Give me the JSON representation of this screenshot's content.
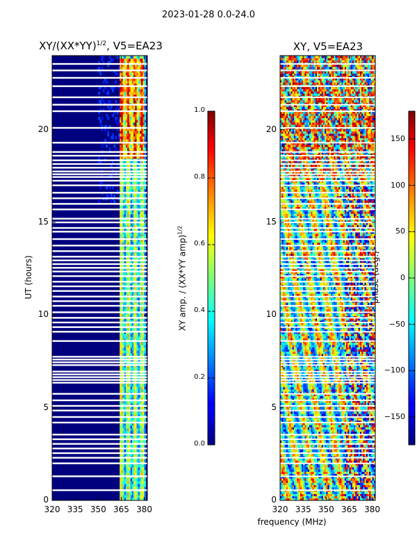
{
  "suptitle": "2023-01-28 0.0-24.0",
  "xlabel_shared": "frequency (MHz)",
  "chart_data": [
    {
      "type": "heatmap",
      "title_main": "XY/(XX*YY)",
      "title_sup": "1/2",
      "title_tail": ", V5=EA23",
      "xlabel": "frequency (MHz)",
      "ylabel": "UT (hours)",
      "xlim": [
        320,
        382
      ],
      "ylim": [
        0,
        24
      ],
      "xticks": [
        {
          "value": 320,
          "label": "320"
        },
        {
          "value": 335,
          "label": "335"
        },
        {
          "value": 350,
          "label": "350"
        },
        {
          "value": 365,
          "label": "365"
        },
        {
          "value": 380,
          "label": "380"
        }
      ],
      "yticks": [
        {
          "value": 0,
          "label": "0"
        },
        {
          "value": 5,
          "label": "5"
        },
        {
          "value": 10,
          "label": "10"
        },
        {
          "value": 15,
          "label": "15"
        },
        {
          "value": 20,
          "label": "20"
        }
      ],
      "colorbar": {
        "label_main": "XY amp. / (XX*YY amp)",
        "label_sup": "1/2",
        "range": [
          0.0,
          1.0
        ],
        "colormap": "jet",
        "ticks": [
          "0.0",
          "0.2",
          "0.4",
          "0.6",
          "0.8",
          "1.0"
        ],
        "tick_values": [
          0.0,
          0.2,
          0.4,
          0.6,
          0.8,
          1.0
        ]
      }
    },
    {
      "type": "heatmap",
      "title": "XY, V5=EA23",
      "xlabel": "frequency (MHz)",
      "ylabel": "",
      "xlim": [
        320,
        382
      ],
      "ylim": [
        0,
        24
      ],
      "xticks": [
        {
          "value": 320,
          "label": "320"
        },
        {
          "value": 335,
          "label": "335"
        },
        {
          "value": 350,
          "label": "350"
        },
        {
          "value": 365,
          "label": "365"
        },
        {
          "value": 380,
          "label": "380"
        }
      ],
      "yticks": [
        {
          "value": 0,
          "label": "0"
        },
        {
          "value": 5,
          "label": "5"
        },
        {
          "value": 10,
          "label": "10"
        },
        {
          "value": 15,
          "label": "15"
        },
        {
          "value": 20,
          "label": "20"
        }
      ],
      "colorbar": {
        "label": "phase (deg.)",
        "range": [
          -180,
          180
        ],
        "colormap": "jet",
        "ticks": [
          "−150",
          "−100",
          "−50",
          "0",
          "50",
          "100",
          "150"
        ],
        "tick_values": [
          -150,
          -100,
          -50,
          0,
          50,
          100,
          150
        ]
      }
    }
  ],
  "flagged_utc_hours": [
    0.55,
    1.3,
    2.0,
    2.3,
    2.55,
    2.8,
    3.05,
    3.3,
    3.55,
    4.2,
    4.5,
    4.85,
    5.1,
    5.4,
    5.75,
    6.35,
    6.5,
    6.65,
    6.8,
    6.95,
    7.3,
    7.45,
    7.6,
    7.75,
    8.6,
    9.1,
    9.35,
    9.6,
    9.85,
    10.15,
    10.5,
    10.75,
    11.0,
    11.3,
    11.55,
    11.8,
    12.1,
    12.35,
    12.55,
    12.75,
    12.95,
    13.15,
    13.45,
    13.75,
    14.1,
    14.5,
    14.7,
    15.0,
    15.2,
    15.7,
    16.0,
    16.3,
    16.6,
    17.0,
    17.25,
    17.45,
    17.6,
    17.75,
    17.95,
    18.15,
    18.35,
    18.6,
    18.8,
    19.3,
    20.1,
    21.0,
    21.35,
    21.75,
    22.35,
    22.8,
    23.2,
    23.55
  ]
}
